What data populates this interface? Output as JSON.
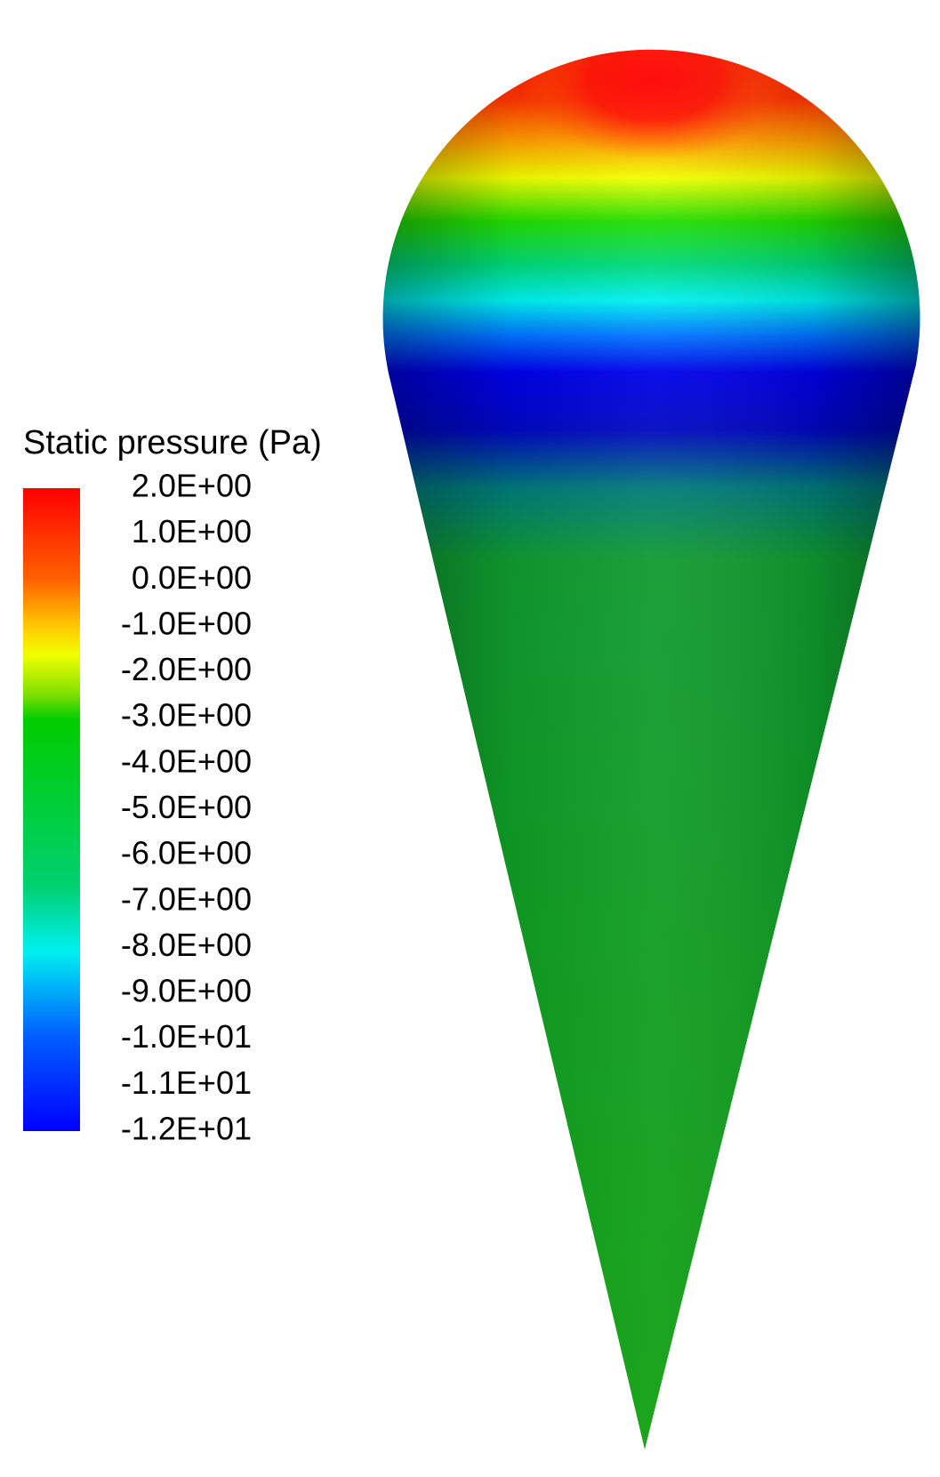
{
  "legend": {
    "title": "Static pressure (Pa)",
    "labels": [
      "2.0E+00",
      "1.0E+00",
      "0.0E+00",
      "-1.0E+00",
      "-2.0E+00",
      "-3.0E+00",
      "-4.0E+00",
      "-5.0E+00",
      "-6.0E+00",
      "-7.0E+00",
      "-8.0E+00",
      "-9.0E+00",
      "-1.0E+01",
      "-1.1E+01",
      "-1.2E+01"
    ]
  }
}
